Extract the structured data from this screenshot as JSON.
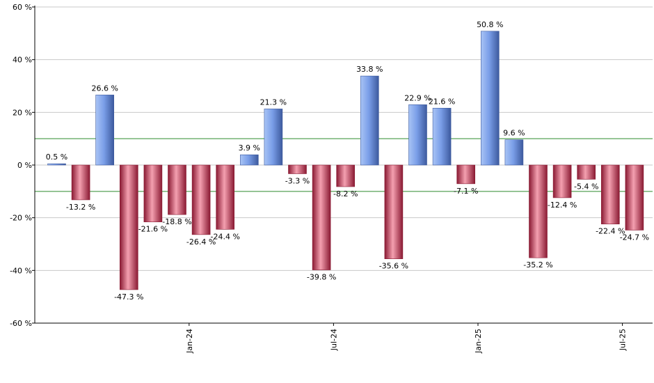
{
  "colors": {
    "positive_light": "#a9c4f5",
    "positive_mid": "#7a9ee8",
    "positive_dark": "#3d5a9e",
    "negative_light": "#f4a0b0",
    "negative_mid": "#d94a67",
    "negative_dark": "#8a1a33",
    "reference_line": "#2e8b2e",
    "grid": "#c8c8c8",
    "axis": "#000000"
  },
  "chart_data": {
    "type": "bar",
    "title": "",
    "xlabel": "",
    "ylabel": "",
    "ylim": [
      -60,
      60
    ],
    "y_ticks": [
      60,
      40,
      20,
      0,
      -20,
      -40,
      -60
    ],
    "y_tick_labels": [
      "60 %",
      "40 %",
      "20 %",
      "0 %",
      "-20 %",
      "-40 %",
      "-60 %"
    ],
    "x_tick_labels": [
      {
        "label": "Jan-24",
        "after_bar_index": 5
      },
      {
        "label": "Jul-24",
        "after_bar_index": 11
      },
      {
        "label": "Jan-25",
        "after_bar_index": 17
      },
      {
        "label": "Jul-25",
        "after_bar_index": 23
      }
    ],
    "reference_lines": [
      10,
      -10
    ],
    "grid": true,
    "values": [
      0.5,
      -13.2,
      26.6,
      -47.3,
      -21.6,
      -18.8,
      -26.4,
      -24.4,
      3.9,
      21.3,
      -3.3,
      -39.8,
      -8.2,
      33.8,
      -35.6,
      22.9,
      21.6,
      -7.1,
      50.8,
      9.6,
      -35.2,
      -12.4,
      -5.4,
      -22.4,
      -24.7
    ],
    "labels": [
      "0.5 %",
      "-13.2 %",
      "26.6 %",
      "-47.3 %",
      "-21.6 %",
      "-18.8 %",
      "-26.4 %",
      "-24.4 %",
      "3.9 %",
      "21.3 %",
      "-3.3 %",
      "-39.8 %",
      "-8.2 %",
      "33.8 %",
      "-35.6 %",
      "22.9 %",
      "21.6 %",
      "-7.1 %",
      "50.8 %",
      "9.6 %",
      "-35.2 %",
      "-12.4 %",
      "-5.4 %",
      "-22.4 %",
      "-24.7 %"
    ]
  }
}
